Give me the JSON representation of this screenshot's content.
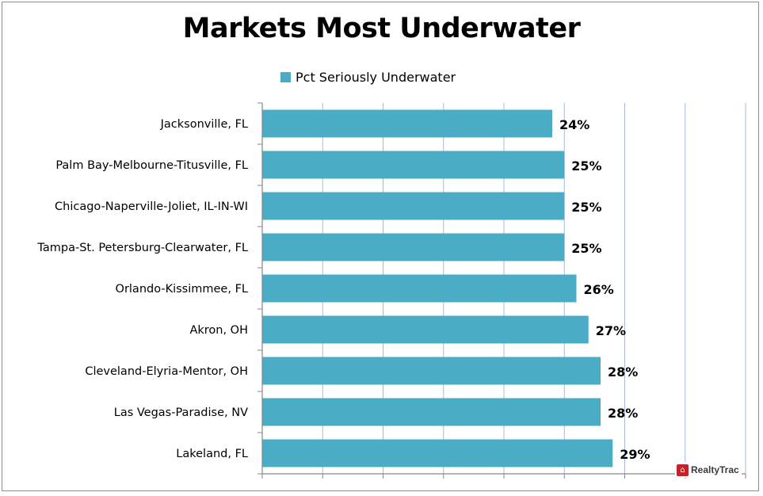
{
  "chart_data": {
    "type": "bar",
    "orientation": "horizontal",
    "title": "Markets Most Underwater",
    "categories": [
      "Jacksonville, FL",
      "Palm Bay-Melbourne-Titusville, FL",
      "Chicago-Naperville-Joliet, IL-IN-WI",
      "Tampa-St. Petersburg-Clearwater, FL",
      "Orlando-Kissimmee, FL",
      "Akron, OH",
      "Cleveland-Elyria-Mentor, OH",
      "Las Vegas-Paradise, NV",
      "Lakeland, FL"
    ],
    "series": [
      {
        "name": "Pct Seriously Underwater",
        "values": [
          24,
          25,
          25,
          25,
          26,
          27,
          28,
          28,
          29
        ],
        "data_labels": [
          "24%",
          "25%",
          "25%",
          "25%",
          "26%",
          "27%",
          "28%",
          "28%",
          "29%"
        ],
        "color": "#4bacc6"
      }
    ],
    "xlim": [
      0,
      0.4
    ],
    "x_axis_visible_labels": false,
    "grid": true,
    "legend_position": "top"
  },
  "branding": {
    "icon": "house-icon",
    "text": "RealtyTrac",
    "color": "#c0242b"
  }
}
